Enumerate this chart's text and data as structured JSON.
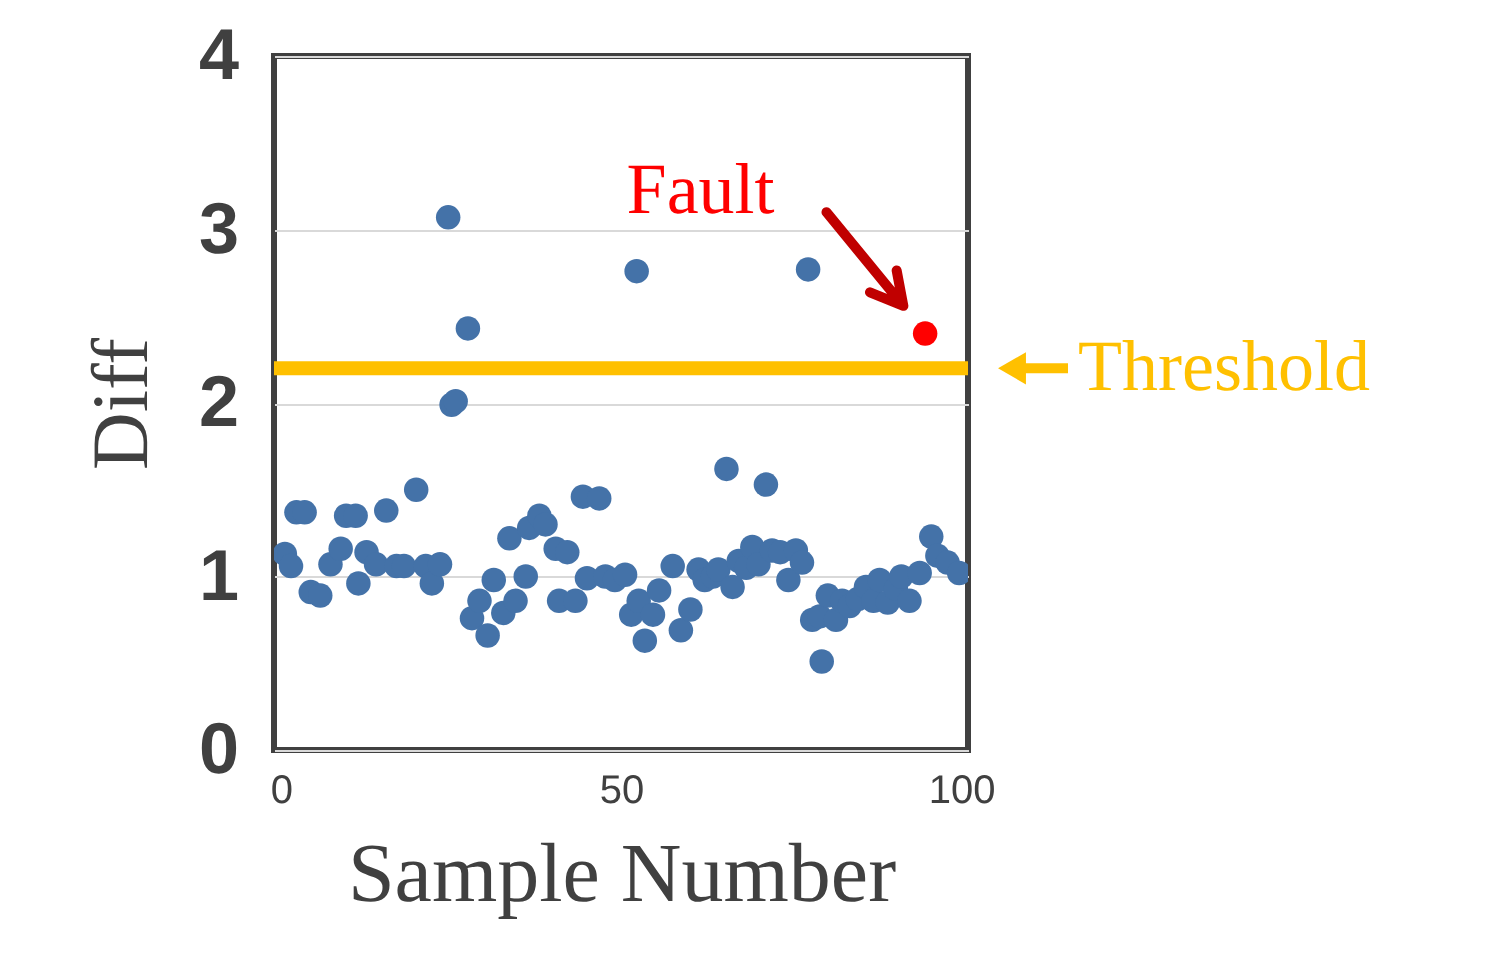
{
  "chart_data": {
    "type": "scatter",
    "xlabel": "Sample Number",
    "ylabel": "Diff",
    "xlim": [
      -1,
      101
    ],
    "ylim": [
      0,
      4
    ],
    "xticks": [
      0,
      50,
      100
    ],
    "yticks": [
      0,
      1,
      2,
      3,
      4
    ],
    "grid": "y",
    "marker": "circle",
    "series": [
      {
        "color": "#4472a8",
        "x": [
          0.6,
          1.5,
          2.3,
          3.5,
          4.4,
          5.8,
          7.3,
          8.8,
          9.6,
          11,
          11.4,
          12.6,
          14,
          15.5,
          17,
          18.1,
          19.9,
          21.3,
          22.2,
          23.4,
          24.6,
          25.1,
          25.7,
          27.5,
          28.1,
          29.2,
          30.4,
          31.3,
          32.7,
          33.6,
          34.5,
          36,
          36.5,
          38,
          38.9,
          40.4,
          40.9,
          42.1,
          43.3,
          44.4,
          45,
          46.8,
          47.7,
          49.1,
          50.6,
          51.5,
          52.3,
          52.6,
          53.5,
          54.7,
          55.6,
          57.6,
          58.8,
          60.2,
          61.4,
          62.3,
          63.5,
          64.3,
          65.5,
          66.4,
          67.3,
          68.4,
          69.3,
          70.2,
          71.3,
          72.2,
          73.4,
          74.6,
          75.7,
          76.6,
          77.5,
          78.1,
          79.2,
          79.5,
          80.4,
          81.6,
          82.5,
          83.6,
          84.8,
          86,
          87.1,
          88,
          89.2,
          90.4,
          91.2,
          92.4,
          93.9,
          95.6,
          96.5,
          98,
          99.7
        ],
        "values": [
          1.13,
          1.06,
          1.37,
          1.37,
          0.91,
          0.89,
          1.07,
          1.16,
          1.35,
          1.35,
          0.96,
          1.14,
          1.07,
          1.38,
          1.06,
          1.06,
          1.5,
          1.06,
          0.96,
          1.07,
          3.07,
          1.99,
          2.01,
          2.43,
          0.76,
          0.86,
          0.66,
          0.98,
          0.79,
          1.22,
          0.86,
          1.0,
          1.28,
          1.35,
          1.3,
          1.16,
          0.86,
          1.14,
          0.86,
          1.46,
          0.99,
          1.45,
          1.0,
          0.98,
          1.01,
          0.78,
          2.76,
          0.86,
          0.63,
          0.78,
          0.92,
          1.06,
          0.69,
          0.81,
          1.04,
          0.98,
          1.0,
          1.04,
          1.62,
          0.94,
          1.09,
          1.05,
          1.17,
          1.07,
          1.53,
          1.15,
          1.14,
          0.98,
          1.15,
          1.08,
          2.77,
          0.75,
          0.77,
          0.51,
          0.89,
          0.75,
          0.86,
          0.83,
          0.87,
          0.94,
          0.86,
          0.98,
          0.85,
          0.93,
          1.0,
          0.86,
          1.02,
          1.23,
          1.12,
          1.08,
          1.02
        ]
      },
      {
        "color": "#ff0000",
        "x": [
          94.7
        ],
        "values": [
          2.4
        ]
      }
    ],
    "ref_lines": [
      {
        "axis": "y",
        "value": 2.2,
        "label": "Threshold",
        "color": "#ffc000"
      }
    ],
    "annotations": [
      {
        "text": "Fault",
        "x": 94.7,
        "y": 2.4
      }
    ]
  }
}
